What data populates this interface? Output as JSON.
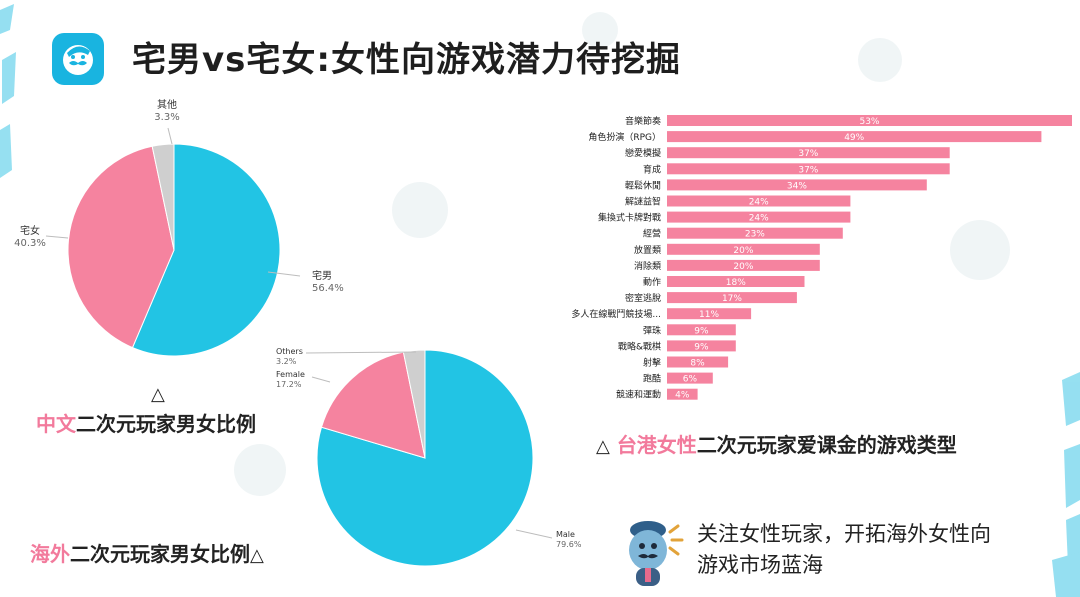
{
  "header": {
    "title": "宅男vs宅女:女性向游戏潜力待挖掘"
  },
  "colors": {
    "blue": "#22c4e4",
    "pink": "#f5839f",
    "gray": "#cfcfcf",
    "bar": "#f5839f",
    "accent_text": "#f27a9c"
  },
  "captions": {
    "chinese": {
      "triangle": "△",
      "highlight": "中文",
      "rest": "二次元玩家男女比例"
    },
    "overseas": {
      "highlight": "海外",
      "rest": "二次元玩家男女比例",
      "triangle": "△"
    },
    "taiwan": {
      "triangle": "△",
      "highlight": "台港女性",
      "rest": "二次元玩家爱课金的游戏类型"
    }
  },
  "note": {
    "line1": "关注女性玩家，开拓海外女性向",
    "line2": "游戏市场蓝海"
  },
  "chart_data": [
    {
      "type": "pie",
      "categories": [
        "宅男",
        "宅女",
        "其他"
      ],
      "values": [
        56.4,
        40.3,
        3.3
      ],
      "value_labels": [
        "56.4%",
        "40.3%",
        "3.3%"
      ]
    },
    {
      "type": "pie",
      "categories": [
        "Male",
        "Female",
        "Others"
      ],
      "values": [
        79.6,
        17.2,
        3.2
      ],
      "value_labels": [
        "79.6%",
        "17.2%",
        "3.2%"
      ]
    },
    {
      "type": "bar",
      "orientation": "horizontal",
      "categories": [
        "音樂節奏",
        "角色扮演（RPG）",
        "戀愛模擬",
        "育成",
        "輕鬆休閒",
        "解謎益智",
        "集換式卡牌對戰",
        "經營",
        "放置類",
        "消除類",
        "動作",
        "密室逃脫",
        "多人在線戰鬥競技場...",
        "彈珠",
        "戰略&戰棋",
        "射擊",
        "跑酷",
        "競速和運動"
      ],
      "values": [
        53,
        49,
        37,
        37,
        34,
        24,
        24,
        23,
        20,
        20,
        18,
        17,
        11,
        9,
        9,
        8,
        6,
        4
      ],
      "value_labels": [
        "53%",
        "49%",
        "37%",
        "37%",
        "34%",
        "24%",
        "24%",
        "23%",
        "20%",
        "20%",
        "18%",
        "17%",
        "11%",
        "9%",
        "9%",
        "8%",
        "6%",
        "4%"
      ],
      "xlim": [
        0,
        53
      ]
    }
  ]
}
